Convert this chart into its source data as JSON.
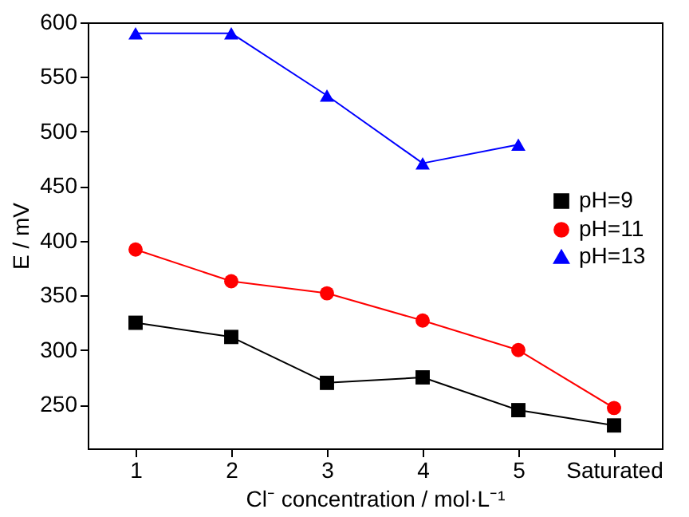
{
  "chart_data": {
    "type": "line",
    "xlabel": "Cl⁻ concentration / mol·L⁻¹",
    "ylabel": "E / mV",
    "categories": [
      "1",
      "2",
      "3",
      "4",
      "5",
      "Saturated"
    ],
    "ylim": [
      210,
      600
    ],
    "yticks": [
      250,
      300,
      350,
      400,
      450,
      500,
      550,
      600
    ],
    "grid": false,
    "legend": "right",
    "line_style": "solid",
    "series": [
      {
        "name": "pH=9",
        "color": "#000000",
        "marker": "square",
        "values": [
          325,
          312,
          270,
          275,
          245,
          231
        ]
      },
      {
        "name": "pH=11",
        "color": "#ff0000",
        "marker": "circle",
        "values": [
          392,
          363,
          352,
          327,
          300,
          247
        ]
      },
      {
        "name": "pH=13",
        "color": "#0000ff",
        "marker": "triangle",
        "values": [
          590,
          590,
          533,
          471,
          488,
          null
        ]
      }
    ]
  }
}
